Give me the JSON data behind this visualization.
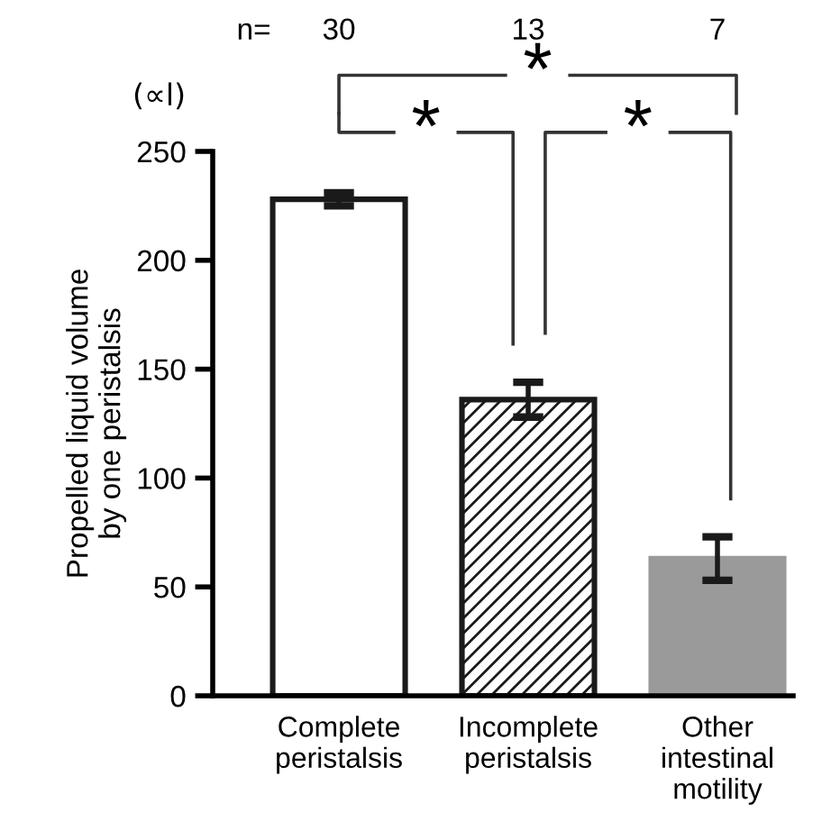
{
  "chart_data": {
    "type": "bar",
    "categories": [
      "Complete\nperistalsis",
      "Incomplete\nperistalsis",
      "Other\nintestinal\nmotility"
    ],
    "values": [
      228,
      136,
      63
    ],
    "errors": [
      3,
      8,
      10
    ],
    "colors": [
      "#ffffff",
      "#1a1a1a",
      "#9a9a9a"
    ],
    "ylabel": "Propelled liquid volume\nby one peristalsis",
    "annotations": [
      "(∝l)",
      "n=",
      "30",
      "13",
      "7",
      "*",
      "*",
      "*"
    ],
    "ylim": [
      0,
      250
    ],
    "yticks": [
      0,
      50,
      100,
      150,
      200,
      250
    ],
    "grid": false,
    "legend": false
  }
}
